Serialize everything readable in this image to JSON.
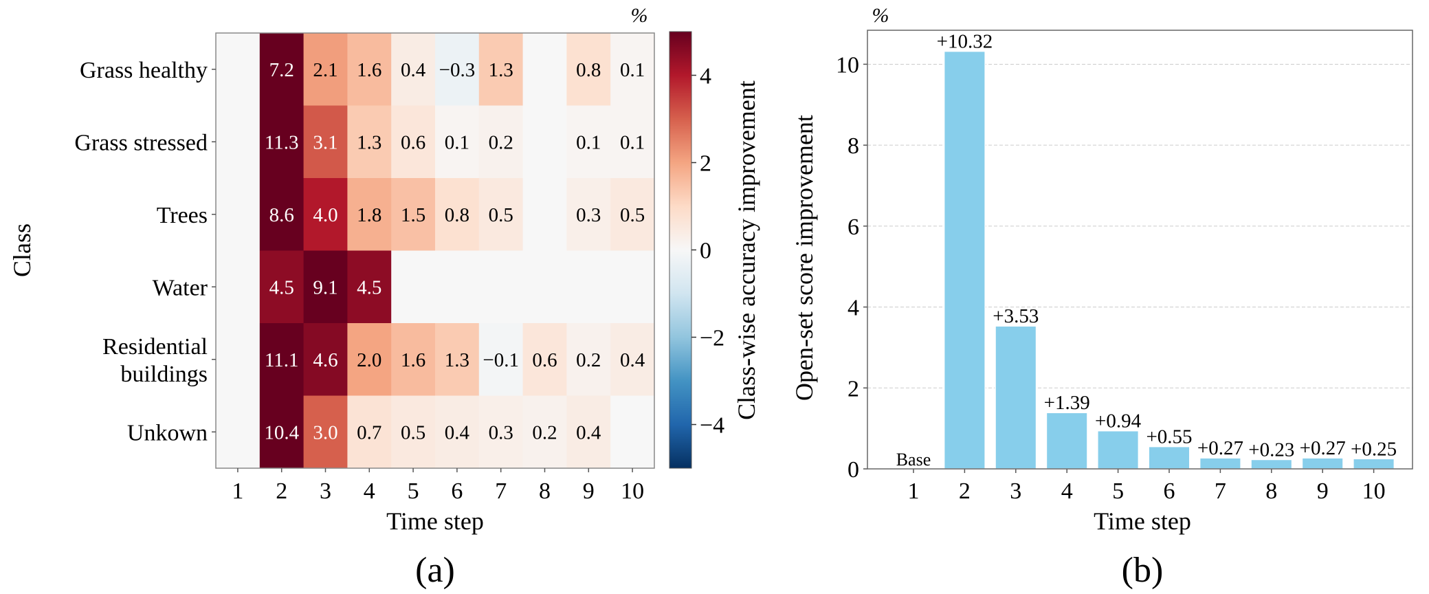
{
  "chart_data": [
    {
      "type": "heatmap",
      "panel_label": "(a)",
      "xlabel": "Time step",
      "ylabel": "Class",
      "x_categories": [
        "1",
        "2",
        "3",
        "4",
        "5",
        "6",
        "7",
        "8",
        "9",
        "10"
      ],
      "y_categories": [
        [
          "Grass healthy"
        ],
        [
          "Grass stressed"
        ],
        [
          "Trees"
        ],
        [
          "Water"
        ],
        [
          "Residential",
          "buildings"
        ],
        [
          "Unkown"
        ]
      ],
      "values": [
        [
          null,
          7.2,
          2.1,
          1.6,
          0.4,
          -0.3,
          1.3,
          null,
          0.8,
          0.1
        ],
        [
          null,
          11.3,
          3.1,
          1.3,
          0.6,
          0.1,
          0.2,
          null,
          0.1,
          0.1
        ],
        [
          null,
          8.6,
          4.0,
          1.8,
          1.5,
          0.8,
          0.5,
          null,
          0.3,
          0.5
        ],
        [
          null,
          4.5,
          9.1,
          4.5,
          null,
          null,
          null,
          null,
          null,
          null
        ],
        [
          null,
          11.1,
          4.6,
          2.0,
          1.6,
          1.3,
          -0.1,
          0.6,
          0.2,
          0.4
        ],
        [
          null,
          10.4,
          3.0,
          0.7,
          0.5,
          0.4,
          0.3,
          0.2,
          0.4,
          null
        ]
      ],
      "colormap": "RdBu_r",
      "colorbar": {
        "label": "Class-wise accuracy improvement",
        "unit": "%",
        "range": [
          -5,
          5
        ],
        "ticks": [
          4,
          2,
          0,
          -2,
          -4
        ],
        "tick_labels": [
          "4",
          "2",
          "0",
          "−2",
          "−4"
        ]
      }
    },
    {
      "type": "bar",
      "panel_label": "(b)",
      "xlabel": "Time step",
      "ylabel": "Open-set score improvement",
      "unit": "%",
      "categories": [
        "1",
        "2",
        "3",
        "4",
        "5",
        "6",
        "7",
        "8",
        "9",
        "10"
      ],
      "values": [
        0,
        10.32,
        3.53,
        1.39,
        0.94,
        0.55,
        0.27,
        0.23,
        0.27,
        0.25
      ],
      "data_labels": [
        "Base",
        "+10.32",
        "+3.53",
        "+1.39",
        "+0.94",
        "+0.55",
        "+0.27",
        "+0.23",
        "+0.27",
        "+0.25"
      ],
      "ylim": [
        0,
        10.84
      ],
      "yticks": [
        0,
        2,
        4,
        6,
        8,
        10
      ],
      "grid": "horizontal dashed",
      "bar_color": "#87CEEB"
    }
  ]
}
